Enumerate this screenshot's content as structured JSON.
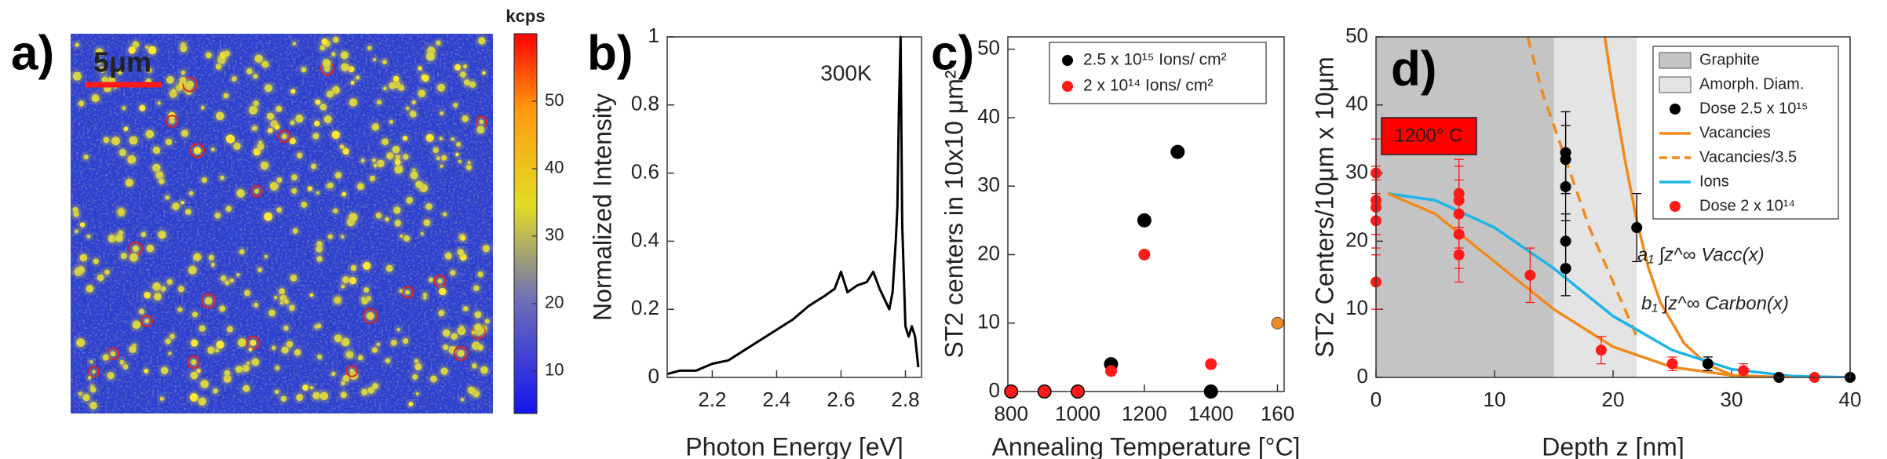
{
  "chart_data": [
    {
      "type": "heatmap",
      "panel_label": "a)",
      "scale_bar": "5μm",
      "colorbar": {
        "label": "kcps",
        "lim": [
          3.7,
          60
        ],
        "ticks": [
          10,
          20,
          30,
          40,
          50
        ]
      }
    },
    {
      "type": "line",
      "panel_label": "b)",
      "annotation": "300K",
      "xlabel": "Photon Energy [eV]",
      "ylabel": "Normalized Intensity",
      "x": [
        2.06,
        2.1,
        2.15,
        2.2,
        2.25,
        2.3,
        2.35,
        2.4,
        2.45,
        2.5,
        2.55,
        2.58,
        2.6,
        2.62,
        2.65,
        2.68,
        2.7,
        2.72,
        2.74,
        2.75,
        2.76,
        2.77,
        2.775,
        2.78,
        2.785,
        2.79,
        2.8,
        2.81,
        2.82,
        2.83,
        2.84
      ],
      "values": [
        0.01,
        0.02,
        0.02,
        0.04,
        0.05,
        0.08,
        0.11,
        0.14,
        0.17,
        0.21,
        0.24,
        0.26,
        0.31,
        0.25,
        0.27,
        0.28,
        0.31,
        0.26,
        0.22,
        0.2,
        0.25,
        0.4,
        0.5,
        0.8,
        1.0,
        0.45,
        0.15,
        0.12,
        0.15,
        0.12,
        0.03
      ],
      "color": "#000000",
      "xlim": [
        2.06,
        2.85
      ],
      "xticks": [
        2.2,
        2.4,
        2.6,
        2.8
      ],
      "ylim": [
        0,
        1
      ],
      "yticks": [
        0,
        0.2,
        0.4,
        0.6,
        0.8,
        1
      ]
    },
    {
      "type": "scatter",
      "panel_label": "c)",
      "xlabel": "Annealing Temperature [°C]",
      "ylabel": "ST2 centers in 10x10 μm²",
      "series": [
        {
          "name": "2.5 x 10¹⁵ Ions/ cm²",
          "color": "#000000",
          "x": [
            800,
            900,
            1000,
            1100,
            1200,
            1300,
            1400
          ],
          "values": [
            0,
            0,
            0,
            4,
            25,
            35,
            0
          ]
        },
        {
          "name": "2 x 10¹⁴ Ions/ cm²",
          "color": "#ff1a1a",
          "x": [
            800,
            900,
            1000,
            1100,
            1200,
            1400
          ],
          "values": [
            0,
            0,
            0,
            3,
            20,
            4
          ]
        },
        {
          "color": "#f08a1c",
          "x": [
            1600
          ],
          "values": [
            10
          ]
        }
      ],
      "xlim": [
        790,
        1620
      ],
      "xticks": [
        800,
        1000,
        1200,
        1400,
        {
          "value": 1600,
          "label": "160"
        }
      ],
      "ylim": [
        0,
        51.8
      ],
      "yticks": [
        0,
        10,
        20,
        30,
        40,
        50
      ]
    },
    {
      "type": "scatter",
      "panel_label": "d)",
      "xlabel": "Depth z [nm]",
      "ylabel": "ST2 Centers/10μm x 10μm",
      "box_label": "1200° C",
      "regions": [
        {
          "name": "Graphite",
          "range": [
            0,
            15
          ],
          "color": "#c4c4c4"
        },
        {
          "name": "Amorph. Diam.",
          "range": [
            15,
            22
          ],
          "color": "#e4e4e4"
        }
      ],
      "series": [
        {
          "name": "Dose 2.5 x 10¹⁵",
          "type": "scatter",
          "color": "#000000",
          "x": [
            16,
            16,
            16,
            16,
            16,
            22,
            28,
            34,
            40
          ],
          "values": [
            33,
            32,
            28,
            20,
            16,
            22,
            2,
            0,
            0
          ],
          "errors": [
            6,
            5,
            5,
            4,
            4,
            5,
            1,
            0.3,
            0.3
          ]
        },
        {
          "name": "Vacancies",
          "type": "line",
          "dash": false,
          "color": "#f08a1c",
          "x": [
            19.3,
            20,
            21,
            22,
            23,
            24,
            26,
            28,
            30
          ],
          "values": [
            50,
            42,
            32,
            23,
            16,
            11,
            5,
            1.8,
            0.4
          ]
        },
        {
          "name": "Vacancies/3.5",
          "type": "line",
          "dash": true,
          "color": "#f08a1c",
          "x": [
            12.8,
            14,
            15,
            16,
            17,
            18,
            19,
            20,
            21,
            22
          ],
          "values": [
            50,
            42,
            37,
            32,
            27,
            22,
            18,
            14,
            10,
            6
          ]
        },
        {
          "name": "Ions",
          "type": "line",
          "dash": false,
          "color": "#1fb4e8",
          "x": [
            1,
            5,
            10,
            15,
            20,
            25,
            30,
            35,
            40
          ],
          "values": [
            27,
            26,
            22,
            16,
            9,
            4,
            1.2,
            0.2,
            0
          ]
        },
        {
          "name": "Dose 2 x 10¹⁴",
          "type": "scatter",
          "color": "#ff1a1a",
          "x": [
            0,
            0,
            0,
            0,
            0,
            7,
            7,
            7,
            7,
            7,
            13,
            19,
            25,
            31,
            37
          ],
          "values": [
            30,
            26,
            25,
            23,
            14,
            27,
            26,
            24,
            21,
            18,
            15,
            4,
            2,
            1,
            0
          ],
          "errors": [
            5,
            5,
            4,
            4,
            4,
            5,
            5,
            5,
            5,
            4,
            4,
            2,
            1,
            1,
            0.3
          ]
        },
        {
          "type": "line",
          "dash": false,
          "color": "#f08a1c",
          "x": [
            1,
            5,
            10,
            15,
            20,
            25,
            30,
            35
          ],
          "values": [
            27,
            24,
            17,
            10,
            4.5,
            1.5,
            0.3,
            0
          ]
        }
      ],
      "annotations": [
        {
          "text": "a₁ ∫z^∞ Vacc(x)",
          "color": "#f08a1c"
        },
        {
          "text": "b₁ ∫z^∞ Carbon(x)",
          "color": "#1fb4e8"
        }
      ],
      "xlim": [
        0,
        40
      ],
      "xticks": [
        0,
        10,
        20,
        30,
        40
      ],
      "ylim": [
        0,
        50
      ],
      "yticks": [
        0,
        10,
        20,
        30,
        40,
        50
      ]
    }
  ]
}
